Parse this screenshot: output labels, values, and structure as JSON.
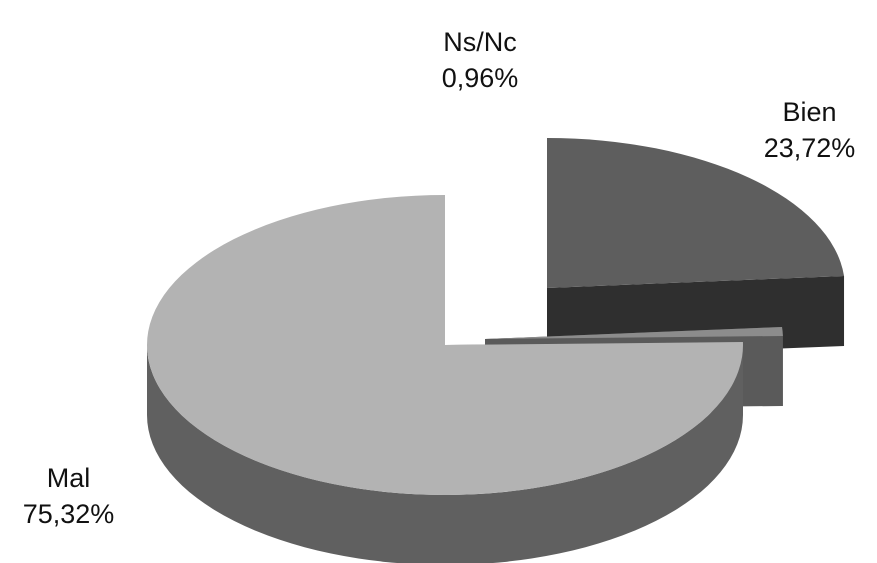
{
  "chart_data": {
    "type": "pie",
    "style": "3d-exploded",
    "title": "",
    "slices": [
      {
        "label": "Bien",
        "value": 23.72,
        "display": "23,72%",
        "top_color": "#5e5e5e",
        "side_color": "#2f2f2f"
      },
      {
        "label": "Ns/Nc",
        "value": 0.96,
        "display": "0,96%",
        "top_color": "#8c8c8c",
        "side_color": "#5a5a5a"
      },
      {
        "label": "Mal",
        "value": 75.32,
        "display": "75,32%",
        "top_color": "#b3b3b3",
        "side_color": "#606060"
      }
    ],
    "legend": "none",
    "grid": false
  }
}
